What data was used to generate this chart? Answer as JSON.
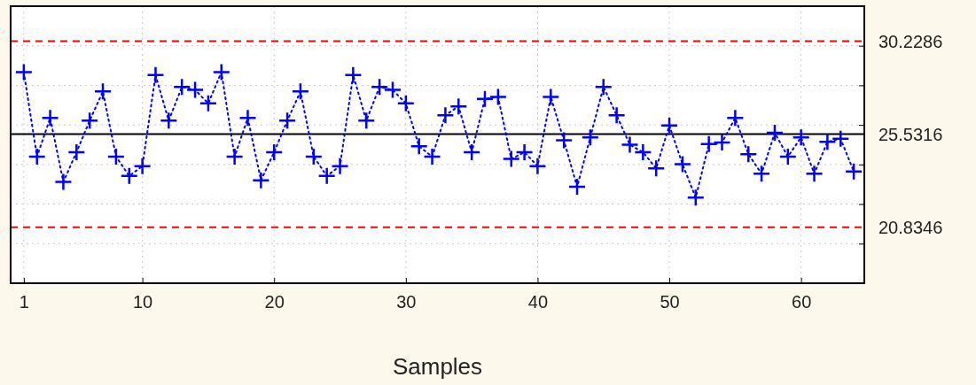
{
  "chart_data": {
    "type": "line",
    "xlabel": "Samples",
    "x": [
      1,
      2,
      3,
      4,
      5,
      6,
      7,
      8,
      9,
      10,
      11,
      12,
      13,
      14,
      15,
      16,
      17,
      18,
      19,
      20,
      21,
      22,
      23,
      24,
      25,
      26,
      27,
      28,
      29,
      30,
      31,
      32,
      33,
      34,
      35,
      36,
      37,
      38,
      39,
      40,
      41,
      42,
      43,
      44,
      45,
      46,
      47,
      48,
      49,
      50,
      51,
      52,
      53,
      54,
      55,
      56,
      57,
      58,
      59,
      60,
      61,
      62,
      63,
      64
    ],
    "series": [
      {
        "color": "#0000ff",
        "values": [
          28.67,
          24.4,
          26.35,
          23.12,
          24.62,
          26.22,
          27.69,
          24.4,
          23.42,
          23.92,
          28.52,
          26.22,
          27.92,
          27.77,
          27.09,
          28.67,
          24.4,
          26.35,
          23.2,
          24.62,
          26.22,
          27.69,
          24.4,
          23.42,
          23.92,
          28.52,
          26.22,
          27.92,
          27.77,
          27.09,
          24.92,
          24.4,
          26.49,
          26.94,
          24.62,
          27.32,
          27.42,
          24.28,
          24.62,
          23.92,
          27.42,
          25.22,
          22.87,
          25.37,
          27.92,
          26.49,
          25.0,
          24.62,
          23.8,
          25.97,
          24.02,
          22.33,
          25.03,
          25.11,
          26.35,
          24.52,
          23.53,
          25.6,
          24.4,
          25.37,
          23.53,
          25.15,
          25.3,
          23.65
        ]
      }
    ],
    "xlim": [
      0,
      64.8
    ],
    "xticks": [
      1,
      10,
      20,
      30,
      40,
      50,
      60
    ],
    "ylim": [
      18,
      32
    ],
    "yticks": [
      {
        "value": 20,
        "label": null
      },
      {
        "value": 22,
        "label": null
      },
      {
        "value": 24,
        "label": null
      },
      {
        "value": 26,
        "label": null
      },
      {
        "value": 28,
        "label": null
      },
      {
        "value": 30,
        "label": null
      }
    ],
    "ref_lines": [
      {
        "axis": "y",
        "value": 30.2286,
        "label": "30.2286",
        "color": "#ff0000",
        "line_style": "dashed"
      },
      {
        "axis": "y",
        "value": 25.5316,
        "label": "25.5316",
        "color": "#000000",
        "line_style": "solid"
      },
      {
        "axis": "y",
        "value": 20.8346,
        "label": "20.8346",
        "color": "#ff0000",
        "line_style": "dashed"
      }
    ],
    "grid": true,
    "marker": "cross",
    "line_style": "dotted"
  }
}
